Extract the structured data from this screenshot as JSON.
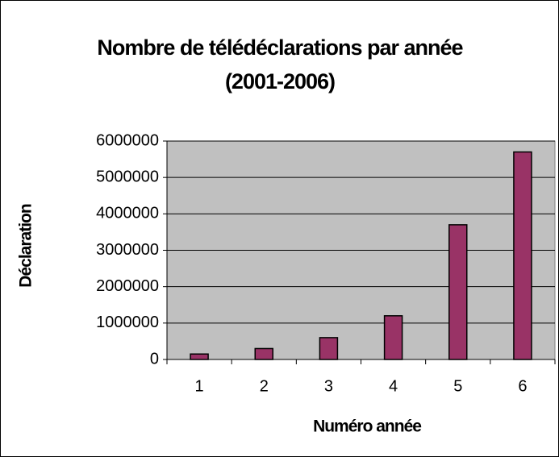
{
  "chart_data": {
    "type": "bar",
    "title": "Nombre de télédéclarations par année (2001-2006)",
    "xlabel": "Numéro année",
    "ylabel": "Déclaration",
    "categories": [
      "1",
      "2",
      "3",
      "4",
      "5",
      "6"
    ],
    "values": [
      150000,
      300000,
      600000,
      1200000,
      3700000,
      5700000
    ],
    "color": "#993366",
    "ylim": [
      0,
      6000000
    ],
    "yticks": [
      0,
      1000000,
      2000000,
      3000000,
      4000000,
      5000000,
      6000000
    ],
    "grid": true
  }
}
